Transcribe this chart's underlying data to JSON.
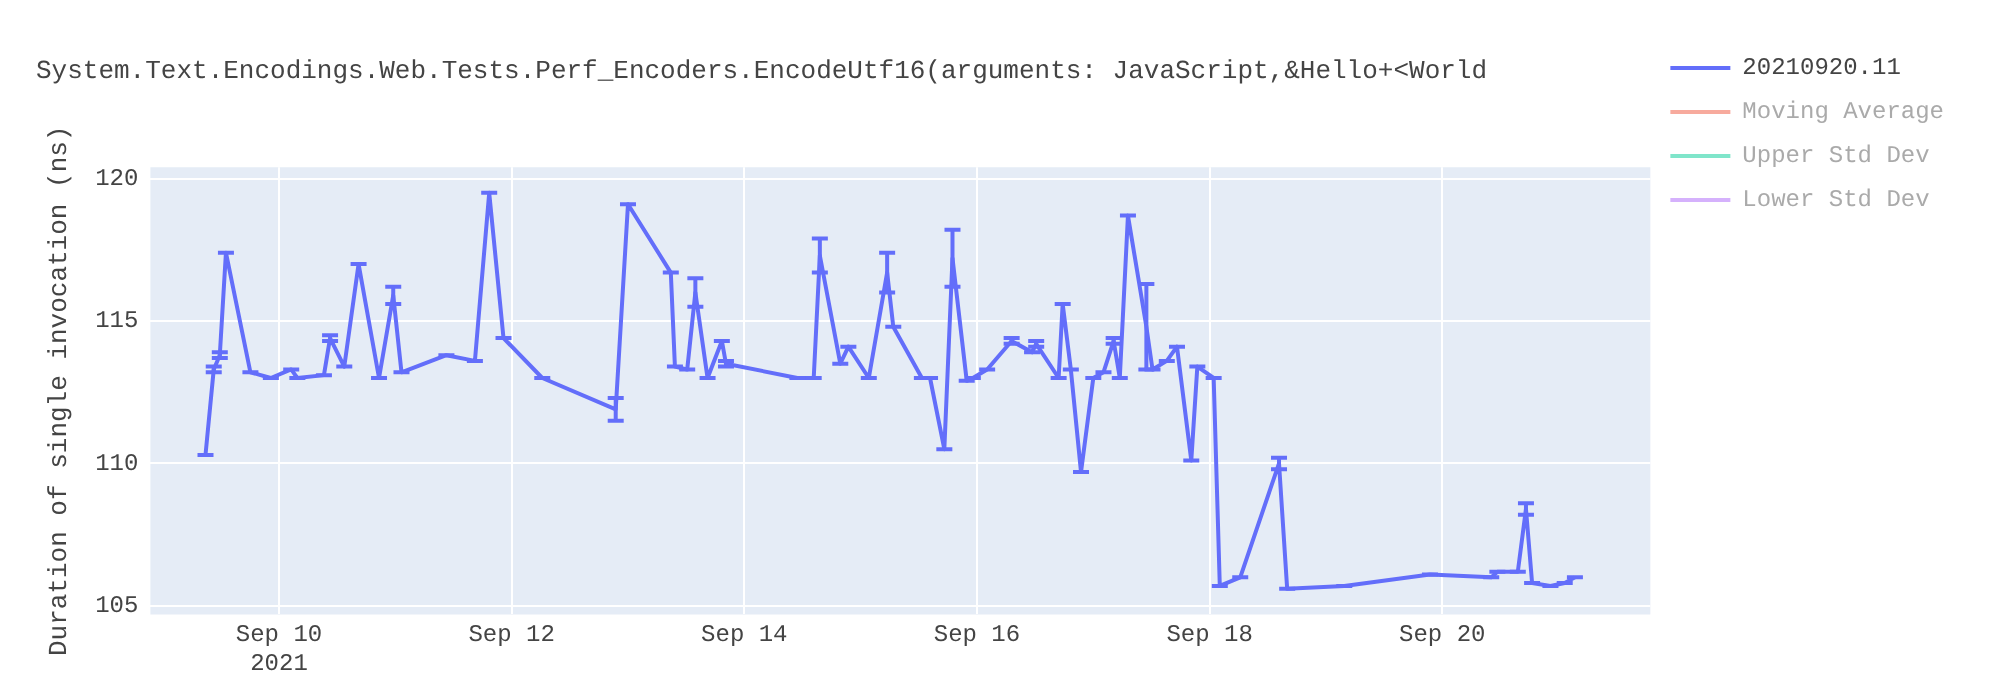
{
  "chart_data": {
    "type": "line",
    "title": "System.Text.Encodings.Web.Tests.Perf_Encoders.EncodeUtf16(arguments: JavaScript,&Hello+<World",
    "ylabel": "Duration of single invocation (ns)",
    "xlim": [
      "2021-09-08T21:28",
      "2021-09-21T18:56"
    ],
    "xticks": [
      {
        "value": "2021-09-10",
        "label": "Sep 10\n2021"
      },
      {
        "value": "2021-09-12",
        "label": "Sep 12"
      },
      {
        "value": "2021-09-14",
        "label": "Sep 14"
      },
      {
        "value": "2021-09-16",
        "label": "Sep 16"
      },
      {
        "value": "2021-09-18",
        "label": "Sep 18"
      },
      {
        "value": "2021-09-20",
        "label": "Sep 20"
      }
    ],
    "ylim": [
      104.7,
      120.4
    ],
    "yticks": [
      105,
      110,
      115,
      120
    ],
    "grid": true,
    "legend": "right",
    "marker": "none",
    "line_style": "solid",
    "series": [
      {
        "name": "20210920.11",
        "color": "#636efa",
        "x": [
          "2021-09-09T08:50",
          "2021-09-09T10:32",
          "2021-09-09T11:47",
          "2021-09-09T13:03",
          "2021-09-09T18:06",
          "2021-09-09T22:19",
          "2021-09-10T02:31",
          "2021-09-10T03:47",
          "2021-09-10T09:16",
          "2021-09-10T10:32",
          "2021-09-10T13:28",
          "2021-09-10T16:25",
          "2021-09-10T20:38",
          "2021-09-10T23:34",
          "2021-09-11T01:16",
          "2021-09-11T10:32",
          "2021-09-11T16:25",
          "2021-09-11T19:22",
          "2021-09-11T22:19",
          "2021-09-12T06:19",
          "2021-09-12T21:28",
          "2021-09-13T00:00",
          "2021-09-13T08:50",
          "2021-09-13T09:41",
          "2021-09-13T12:13",
          "2021-09-13T13:54",
          "2021-09-13T16:25",
          "2021-09-13T19:22",
          "2021-09-13T20:13",
          "2021-09-14T10:57",
          "2021-09-14T14:19",
          "2021-09-14T15:35",
          "2021-09-14T19:48",
          "2021-09-14T21:28",
          "2021-09-15T01:41",
          "2021-09-15T05:28",
          "2021-09-15T06:44",
          "2021-09-15T12:38",
          "2021-09-15T14:19",
          "2021-09-15T17:16",
          "2021-09-15T18:57",
          "2021-09-15T21:53",
          "2021-09-15T23:09",
          "2021-09-16T02:06",
          "2021-09-16T07:09",
          "2021-09-16T11:22",
          "2021-09-16T12:13",
          "2021-09-16T16:51",
          "2021-09-16T17:41",
          "2021-09-16T19:22",
          "2021-09-16T21:28",
          "2021-09-17T00:00",
          "2021-09-17T02:06",
          "2021-09-17T04:12",
          "2021-09-17T05:28",
          "2021-09-17T07:09",
          "2021-09-17T10:57",
          "2021-09-17T12:13",
          "2021-09-17T15:10",
          "2021-09-17T17:16",
          "2021-09-17T20:13",
          "2021-09-17T21:28",
          "2021-09-18T00:50",
          "2021-09-18T02:06",
          "2021-09-18T06:19",
          "2021-09-18T14:19",
          "2021-09-18T16:00",
          "2021-09-19T03:47",
          "2021-09-19T21:28",
          "2021-09-20T10:06",
          "2021-09-20T11:22",
          "2021-09-20T15:35",
          "2021-09-20T17:16",
          "2021-09-20T18:32",
          "2021-09-20T22:19",
          "2021-09-21T01:16",
          "2021-09-21T03:22"
        ],
        "values": [
          110.3,
          113.3,
          113.8,
          117.4,
          113.2,
          113.0,
          113.3,
          113.0,
          113.1,
          114.4,
          113.4,
          117.0,
          113.0,
          115.9,
          113.2,
          113.8,
          113.6,
          119.5,
          114.4,
          113.0,
          111.9,
          119.1,
          116.7,
          113.4,
          113.3,
          116.0,
          113.0,
          114.3,
          113.5,
          113.0,
          113.0,
          117.3,
          113.5,
          114.1,
          113.0,
          116.7,
          114.8,
          113.0,
          113.0,
          110.5,
          117.2,
          112.9,
          113.0,
          113.3,
          114.3,
          113.9,
          114.2,
          113.0,
          115.6,
          113.3,
          109.7,
          113.0,
          113.2,
          114.3,
          113.0,
          118.7,
          114.8,
          113.3,
          113.6,
          114.1,
          110.1,
          113.4,
          113.0,
          105.7,
          106.0,
          110.0,
          105.6,
          105.7,
          106.1,
          106.0,
          106.2,
          106.2,
          108.4,
          105.8,
          105.7,
          105.8,
          106.0
        ],
        "errors": [
          null,
          0.1,
          0.1,
          null,
          null,
          null,
          null,
          null,
          null,
          0.1,
          null,
          null,
          null,
          0.3,
          null,
          null,
          null,
          null,
          null,
          null,
          0.4,
          null,
          null,
          null,
          null,
          0.5,
          null,
          null,
          0.1,
          null,
          null,
          0.6,
          null,
          null,
          null,
          0.7,
          null,
          null,
          null,
          null,
          1.0,
          null,
          null,
          null,
          0.1,
          null,
          0.1,
          null,
          null,
          null,
          null,
          null,
          null,
          0.1,
          null,
          null,
          1.5,
          null,
          null,
          null,
          null,
          null,
          null,
          null,
          null,
          0.2,
          null,
          null,
          null,
          null,
          null,
          null,
          0.2,
          null,
          null,
          null,
          null
        ]
      },
      {
        "name": "Moving Average",
        "color": "#ef553b"
      },
      {
        "name": "Upper Std Dev",
        "color": "#00cc96"
      },
      {
        "name": "Lower Std Dev",
        "color": "#ab63fa"
      }
    ]
  }
}
